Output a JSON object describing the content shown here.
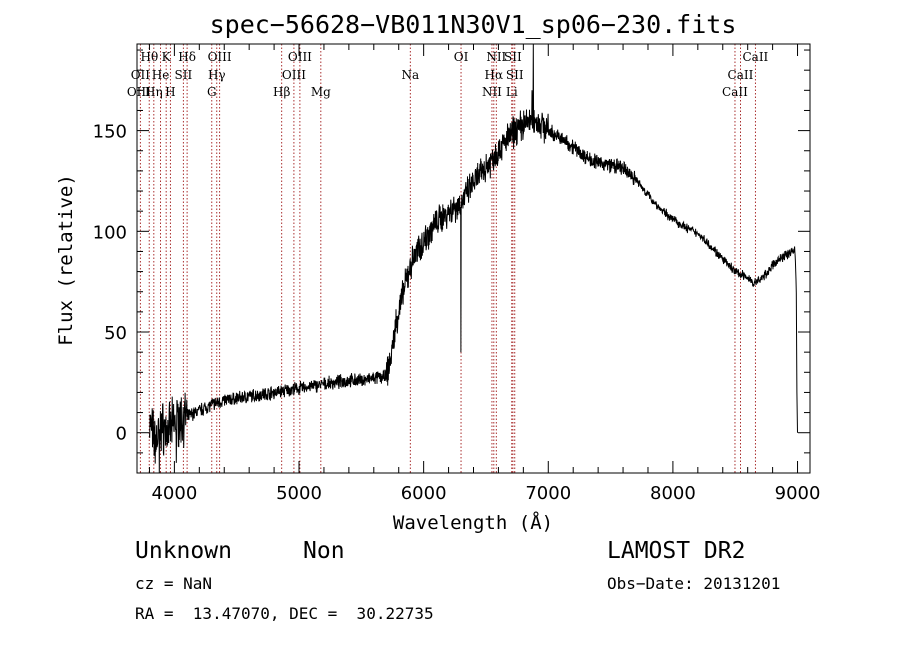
{
  "chart_data": {
    "type": "line",
    "title": "spec−56628−VB011N30V1_sp06−230.fits",
    "xlabel": "Wavelength (Å)",
    "ylabel": "Flux (relative)",
    "xlim": [
      3700,
      9100
    ],
    "ylim": [
      -20,
      193
    ],
    "x_ticks": [
      4000,
      5000,
      6000,
      7000,
      8000,
      9000
    ],
    "y_ticks": [
      0,
      50,
      100,
      150
    ],
    "grid": false,
    "line_color": "#000000",
    "marker_color": "#a01818",
    "spectrum_anchors": [
      [
        3800,
        5
      ],
      [
        3850,
        -5
      ],
      [
        3900,
        3
      ],
      [
        3950,
        0
      ],
      [
        4000,
        5
      ],
      [
        4100,
        8
      ],
      [
        4200,
        11
      ],
      [
        4300,
        14
      ],
      [
        4400,
        16
      ],
      [
        4500,
        17
      ],
      [
        4600,
        18
      ],
      [
        4700,
        19
      ],
      [
        4800,
        20
      ],
      [
        4900,
        21
      ],
      [
        5000,
        22
      ],
      [
        5100,
        23
      ],
      [
        5200,
        24
      ],
      [
        5300,
        25
      ],
      [
        5400,
        26
      ],
      [
        5500,
        26
      ],
      [
        5600,
        27
      ],
      [
        5700,
        28
      ],
      [
        5740,
        38
      ],
      [
        5780,
        55
      ],
      [
        5820,
        65
      ],
      [
        5860,
        75
      ],
      [
        5900,
        84
      ],
      [
        5950,
        90
      ],
      [
        6000,
        95
      ],
      [
        6050,
        100
      ],
      [
        6100,
        104
      ],
      [
        6150,
        107
      ],
      [
        6200,
        110
      ],
      [
        6250,
        112
      ],
      [
        6300,
        114
      ],
      [
        6350,
        119
      ],
      [
        6400,
        124
      ],
      [
        6450,
        128
      ],
      [
        6500,
        132
      ],
      [
        6550,
        136
      ],
      [
        6600,
        140
      ],
      [
        6650,
        144
      ],
      [
        6700,
        148
      ],
      [
        6750,
        151
      ],
      [
        6800,
        153
      ],
      [
        6850,
        155
      ],
      [
        6900,
        155
      ],
      [
        6950,
        153
      ],
      [
        7000,
        150
      ],
      [
        7100,
        146
      ],
      [
        7200,
        142
      ],
      [
        7300,
        137
      ],
      [
        7400,
        134
      ],
      [
        7500,
        133
      ],
      [
        7600,
        131
      ],
      [
        7700,
        126
      ],
      [
        7800,
        118
      ],
      [
        7900,
        111
      ],
      [
        8000,
        106
      ],
      [
        8100,
        102
      ],
      [
        8200,
        99
      ],
      [
        8300,
        93
      ],
      [
        8400,
        86
      ],
      [
        8500,
        80
      ],
      [
        8600,
        77
      ],
      [
        8650,
        74
      ],
      [
        8700,
        76
      ],
      [
        8750,
        79
      ],
      [
        8800,
        83
      ],
      [
        8850,
        86
      ],
      [
        8900,
        88
      ],
      [
        8950,
        90
      ],
      [
        8980,
        91
      ],
      [
        8990,
        70
      ],
      [
        9000,
        0
      ]
    ],
    "spectrum_features": [
      {
        "x": 6300,
        "y": 40
      },
      {
        "x": 6880,
        "y": 193
      },
      {
        "x": 6870,
        "y": 170
      },
      {
        "x": 4015,
        "y": -15
      },
      {
        "x": 3880,
        "y": -20
      }
    ],
    "line_markers": [
      3727,
      3798,
      3835,
      3889,
      3934,
      3968,
      4072,
      4102,
      4300,
      4340,
      4363,
      4861,
      4959,
      5007,
      5175,
      5893,
      6300,
      6548,
      6563,
      6583,
      6707,
      6716,
      6731,
      8498,
      8542,
      8662
    ],
    "line_labels": [
      {
        "text": "Hθ",
        "x": 3799,
        "row": 0
      },
      {
        "text": "K",
        "x": 3934,
        "row": 0
      },
      {
        "text": "Hδ",
        "x": 4102,
        "row": 0
      },
      {
        "text": "OIII",
        "x": 4363,
        "row": 0
      },
      {
        "text": "OIII",
        "x": 5007,
        "row": 0
      },
      {
        "text": "OI",
        "x": 6300,
        "row": 0
      },
      {
        "text": "NII",
        "x": 6583,
        "row": 0
      },
      {
        "text": "SII",
        "x": 6716,
        "row": 0
      },
      {
        "text": "CaII",
        "x": 8662,
        "row": 0
      },
      {
        "text": "OII",
        "x": 3727,
        "row": 1
      },
      {
        "text": "He",
        "x": 3889,
        "row": 1
      },
      {
        "text": "SII",
        "x": 4072,
        "row": 1
      },
      {
        "text": "Hγ",
        "x": 4340,
        "row": 1
      },
      {
        "text": "OIII",
        "x": 4959,
        "row": 1
      },
      {
        "text": "Na",
        "x": 5893,
        "row": 1
      },
      {
        "text": "Hα",
        "x": 6563,
        "row": 1
      },
      {
        "text": "SII",
        "x": 6731,
        "row": 1
      },
      {
        "text": "CaII",
        "x": 8542,
        "row": 1
      },
      {
        "text": "OIII",
        "x": 3715,
        "row": 2
      },
      {
        "text": "Hη",
        "x": 3835,
        "row": 2
      },
      {
        "text": "H",
        "x": 3968,
        "row": 2
      },
      {
        "text": "G",
        "x": 4300,
        "row": 2
      },
      {
        "text": "Hβ",
        "x": 4861,
        "row": 2
      },
      {
        "text": "Mg",
        "x": 5175,
        "row": 2
      },
      {
        "text": "NII",
        "x": 6548,
        "row": 2
      },
      {
        "text": "Li",
        "x": 6707,
        "row": 2
      },
      {
        "text": "CaII",
        "x": 8498,
        "row": 2
      }
    ]
  },
  "info": {
    "object_class": "Unknown",
    "object_subclass": "Non",
    "survey": "LAMOST DR2",
    "cz": "cz = NaN",
    "obs_date": "Obs−Date: 20131201",
    "coords": "RA =  13.47070, DEC =  30.22735"
  }
}
